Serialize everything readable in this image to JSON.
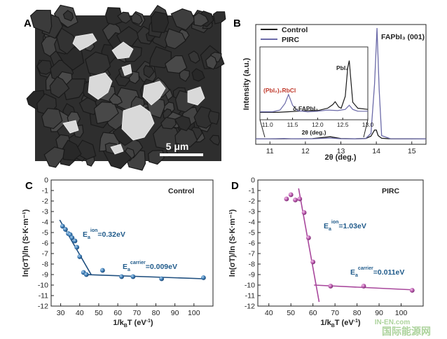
{
  "panels": {
    "a": {
      "letter": "A",
      "scale_bar_label": "5 μm"
    },
    "b": {
      "letter": "B"
    },
    "c": {
      "letter": "C"
    },
    "d": {
      "letter": "D"
    }
  },
  "watermark": {
    "cn": "国际能源网",
    "en": "IN-EN.com"
  },
  "colors": {
    "control": "#1a1a1a",
    "pirc": "#6b6aa8",
    "c_series": "#2a5c8c",
    "d_series": "#b35aa8",
    "c_annotation": "#1f5a8a",
    "d_annotation": "#1f5a8a",
    "inset_red": "#c0392b"
  },
  "chart_data": [
    {
      "panel": "B",
      "type": "line",
      "xlabel": "2θ (deg.)",
      "ylabel": "Intensity (a.u.)",
      "xlim": [
        10.6,
        15.4
      ],
      "xticks": [
        11,
        12,
        13,
        14,
        15
      ],
      "legend": {
        "placement": "top-left"
      },
      "series": [
        {
          "name": "Control",
          "x": [
            10.6,
            11.0,
            11.4,
            11.6,
            11.8,
            12.2,
            12.7,
            13.0,
            13.4,
            13.7,
            13.85,
            13.95,
            14.0,
            14.05,
            14.15,
            14.4,
            15.4
          ],
          "y": [
            0.01,
            0.01,
            0.011,
            0.012,
            0.012,
            0.013,
            0.03,
            0.014,
            0.012,
            0.014,
            0.035,
            0.09,
            0.09,
            0.04,
            0.016,
            0.011,
            0.01
          ]
        },
        {
          "name": "PIRC",
          "x": [
            10.6,
            11.0,
            11.4,
            11.6,
            11.8,
            12.2,
            12.7,
            13.0,
            13.4,
            13.7,
            13.85,
            13.95,
            14.02,
            14.08,
            14.15,
            14.4,
            15.4
          ],
          "y": [
            0.01,
            0.01,
            0.014,
            0.012,
            0.011,
            0.012,
            0.018,
            0.012,
            0.011,
            0.013,
            0.06,
            0.5,
            1.0,
            0.45,
            0.04,
            0.012,
            0.01
          ]
        }
      ],
      "annotations": [
        "FAPbI₃ (001)"
      ],
      "inset": {
        "xlabel": "2θ (deg.)",
        "xlim": [
          10.85,
          13.0
        ],
        "xticks": [
          "11.0",
          "11.5",
          "12.0",
          "12.5",
          "13.0"
        ],
        "annotations": [
          "PbI₂",
          "(PbI₂)₂RbCl",
          "δ-FAPbI₃"
        ],
        "series": [
          {
            "name": "Control",
            "x": [
              10.85,
              11.2,
              11.4,
              11.6,
              11.8,
              12.0,
              12.2,
              12.3,
              12.35,
              12.42,
              12.47,
              12.55,
              12.6,
              12.63,
              12.66,
              12.7,
              12.8,
              13.0
            ],
            "y": [
              0.03,
              0.03,
              0.04,
              0.05,
              0.06,
              0.06,
              0.1,
              0.16,
              0.21,
              0.12,
              0.1,
              0.3,
              0.78,
              0.9,
              0.6,
              0.2,
              0.1,
              0.08
            ]
          },
          {
            "name": "PIRC",
            "x": [
              10.85,
              11.1,
              11.25,
              11.35,
              11.42,
              11.5,
              11.6,
              11.8,
              12.0,
              12.2,
              12.4,
              12.55,
              12.63,
              12.7,
              12.8,
              13.0
            ],
            "y": [
              0.04,
              0.04,
              0.07,
              0.18,
              0.33,
              0.15,
              0.06,
              0.04,
              0.05,
              0.07,
              0.06,
              0.08,
              0.15,
              0.08,
              0.05,
              0.05
            ]
          }
        ]
      }
    },
    {
      "panel": "C",
      "type": "scatter",
      "title": "Control",
      "xlabel": "1/kBT (eV⁻¹)",
      "ylabel": "ln(σT)/ln (S·K·m⁻¹)",
      "xlim": [
        25,
        110
      ],
      "ylim": [
        -12,
        0
      ],
      "xticks": [
        30,
        40,
        50,
        60,
        70,
        80,
        90,
        100
      ],
      "yticks": [
        0,
        -1,
        -2,
        -3,
        -4,
        -5,
        -6,
        -7,
        -8,
        -9,
        -10,
        -11,
        -12
      ],
      "x": [
        31,
        32.5,
        34,
        35,
        36,
        37.5,
        38.5,
        40,
        42,
        43.5,
        52,
        62,
        68,
        83,
        105
      ],
      "y": [
        -4.4,
        -4.7,
        -5.1,
        -5.2,
        -5.5,
        -5.8,
        -6.4,
        -7.3,
        -8.8,
        -9.0,
        -8.6,
        -9.2,
        -9.2,
        -9.4,
        -9.3
      ],
      "fits": [
        {
          "x": [
            29.5,
            46
          ],
          "y": [
            -3.8,
            -9.0
          ]
        },
        {
          "x": [
            43,
            105
          ],
          "y": [
            -9.0,
            -9.4
          ]
        }
      ],
      "annotations": [
        {
          "label": "Ea",
          "superscript": "ion",
          "value": "=0.32eV"
        },
        {
          "label": "Ea",
          "superscript": "carrier",
          "value": "=0.009eV"
        }
      ]
    },
    {
      "panel": "D",
      "type": "scatter",
      "title": "PIRC",
      "xlabel": "1/kBT (eV⁻¹)",
      "ylabel": "ln(σT)/ln (S·K·m⁻¹)",
      "xlim": [
        35,
        110
      ],
      "ylim": [
        -12,
        0
      ],
      "xticks": [
        40,
        50,
        60,
        70,
        80,
        90,
        100
      ],
      "yticks": [
        0,
        -1,
        -2,
        -3,
        -4,
        -5,
        -6,
        -7,
        -8,
        -9,
        -10,
        -11,
        -12
      ],
      "x": [
        48,
        50,
        52,
        54,
        56,
        58,
        60,
        68,
        83,
        105
      ],
      "y": [
        -1.8,
        -1.4,
        -1.9,
        -1.8,
        -3.1,
        -5.5,
        -7.8,
        -10.1,
        -10.1,
        -10.5
      ],
      "fits": [
        {
          "x": [
            53.5,
            62.8
          ],
          "y": [
            -0.8,
            -11.6
          ]
        },
        {
          "x": [
            60.5,
            105
          ],
          "y": [
            -10.0,
            -10.45
          ]
        }
      ],
      "annotations": [
        {
          "label": "Ea",
          "superscript": "ion",
          "value": "=1.03eV"
        },
        {
          "label": "Ea",
          "superscript": "carrier",
          "value": "=0.011eV"
        }
      ]
    }
  ]
}
